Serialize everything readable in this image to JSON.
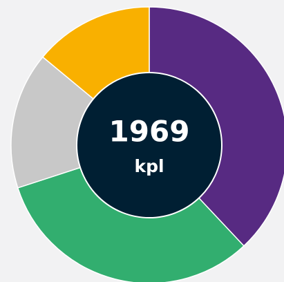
{
  "chart_data": {
    "type": "donut",
    "center_value": "1969",
    "center_unit": "kpl",
    "categories": [
      null,
      null,
      null,
      null
    ],
    "series": [
      {
        "values": [
          38,
          32,
          16,
          14
        ],
        "colors": [
          "#572a82",
          "#32ae6f",
          "#c8c8c8",
          "#f9b000"
        ]
      }
    ],
    "center_color": "#001f33"
  }
}
